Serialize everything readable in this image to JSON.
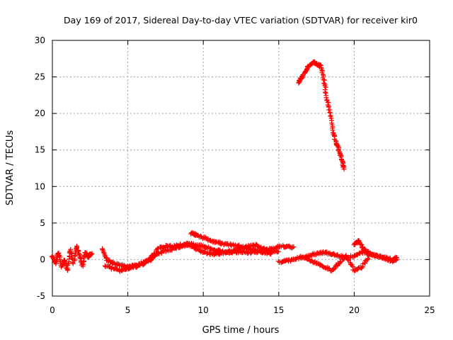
{
  "chart_data": {
    "type": "scatter",
    "title": "Day 169 of 2017, Sidereal Day-to-day VTEC variation (SDTVAR) for receiver kir0",
    "xlabel": "GPS time / hours",
    "ylabel": "SDTVAR / TECUs",
    "xlim": [
      0,
      25
    ],
    "ylim": [
      -5,
      30
    ],
    "xticks": [
      "0",
      "5",
      "10",
      "15",
      "20",
      "25"
    ],
    "yticks": [
      "-5",
      "0",
      "5",
      "10",
      "15",
      "20",
      "25",
      "30"
    ],
    "grid": true,
    "marker": "+",
    "color": "#ff0000",
    "series": [
      {
        "name": "SDTVAR",
        "tracks": [
          {
            "x": [
              0.0,
              0.2,
              0.4,
              0.6,
              0.8,
              1.0,
              1.2,
              1.4,
              1.6,
              1.8,
              2.0,
              2.2,
              2.4,
              2.6
            ],
            "y": [
              0.5,
              -0.5,
              1.0,
              -1.0,
              0.0,
              -1.5,
              1.5,
              -0.5,
              1.8,
              0.5,
              -0.8,
              1.0,
              0.3,
              0.9
            ]
          },
          {
            "x": [
              3.3,
              3.6,
              4.0,
              4.5,
              5.0,
              5.5,
              6.0,
              6.5,
              7.0,
              7.5,
              8.0,
              8.5,
              9.0,
              9.5,
              10.0,
              10.5,
              11.0,
              11.5,
              12.0,
              12.5,
              13.0,
              13.5,
              14.0,
              14.5,
              15.0,
              15.5,
              16.0
            ],
            "y": [
              1.5,
              0.0,
              -0.5,
              -0.8,
              -1.0,
              -0.8,
              -0.5,
              0.0,
              0.8,
              1.2,
              1.5,
              1.8,
              2.0,
              1.5,
              1.0,
              0.8,
              0.8,
              1.0,
              1.0,
              1.0,
              1.0,
              1.0,
              1.2,
              1.5,
              1.8,
              1.8,
              1.6
            ]
          },
          {
            "x": [
              3.5,
              4.0,
              4.5,
              5.0,
              5.5,
              6.0,
              6.5,
              7.0,
              7.5,
              8.0,
              8.5,
              9.0,
              9.5,
              10.0,
              10.5,
              11.0,
              11.5,
              12.0,
              12.5,
              13.0,
              13.5,
              14.0,
              14.5,
              15.0
            ],
            "y": [
              -0.8,
              -1.2,
              -1.5,
              -1.2,
              -1.0,
              -0.6,
              0.2,
              1.5,
              1.8,
              1.8,
              2.0,
              2.2,
              2.0,
              1.8,
              1.5,
              1.2,
              1.0,
              1.2,
              1.5,
              1.8,
              2.0,
              1.5,
              1.0,
              1.2
            ]
          },
          {
            "x": [
              9.2,
              9.5,
              10.0,
              10.5,
              11.0,
              11.5,
              12.0,
              12.5,
              13.0,
              13.5,
              14.0,
              14.5
            ],
            "y": [
              3.6,
              3.4,
              3.0,
              2.6,
              2.3,
              2.1,
              2.0,
              1.8,
              1.5,
              1.2,
              1.0,
              0.8
            ]
          },
          {
            "x": [
              15.0,
              15.5,
              16.0,
              16.5,
              17.0,
              17.5,
              18.0,
              18.5,
              19.0,
              19.5,
              20.0,
              20.5,
              21.0,
              21.5,
              22.0,
              22.5,
              22.8
            ],
            "y": [
              -0.3,
              -0.2,
              0.0,
              0.3,
              0.5,
              0.8,
              1.0,
              0.8,
              0.5,
              0.3,
              0.5,
              1.0,
              0.8,
              0.5,
              0.3,
              0.0,
              0.2
            ]
          },
          {
            "x": [
              16.5,
              17.0,
              17.5,
              18.0,
              18.5,
              19.0,
              19.5,
              20.0,
              20.5,
              21.0
            ],
            "y": [
              0.5,
              0.0,
              -0.5,
              -1.0,
              -1.5,
              -0.5,
              0.5,
              -1.5,
              -1.0,
              0.5
            ]
          },
          {
            "x": [
              20.0,
              20.3,
              20.6,
              21.0,
              21.5,
              22.0,
              22.5,
              22.8
            ],
            "y": [
              2.0,
              2.5,
              1.5,
              0.8,
              0.5,
              0.2,
              -0.2,
              0.0
            ]
          },
          {
            "x": [
              16.3,
              16.5,
              16.8,
              17.0,
              17.3,
              17.5,
              17.8,
              18.0,
              18.2,
              18.4,
              18.6,
              18.8,
              19.0,
              19.2,
              19.3
            ],
            "y": [
              24.3,
              24.8,
              25.8,
              26.5,
              27.0,
              26.8,
              26.5,
              24.5,
              22.0,
              20.0,
              17.5,
              16.0,
              15.0,
              13.5,
              12.5
            ]
          }
        ]
      }
    ]
  }
}
